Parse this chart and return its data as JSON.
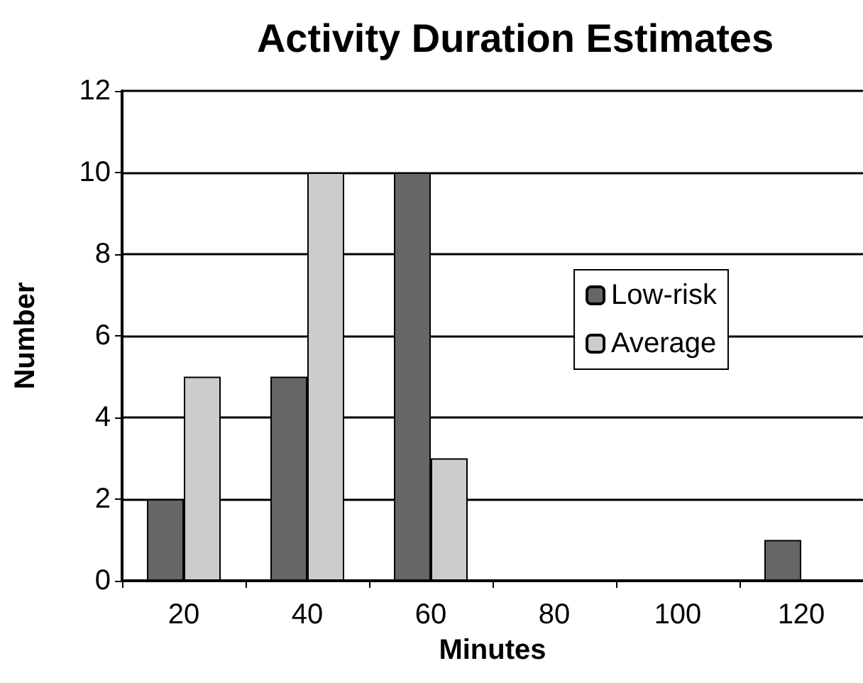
{
  "chart_data": {
    "type": "bar",
    "title": "Activity Duration Estimates",
    "xlabel": "Minutes",
    "ylabel": "Number",
    "categories": [
      "20",
      "40",
      "60",
      "80",
      "100",
      "120"
    ],
    "series": [
      {
        "name": "Low-risk",
        "color": "#666666",
        "values": [
          2,
          5,
          10,
          0,
          0,
          1
        ]
      },
      {
        "name": "Average",
        "color": "#cccccc",
        "values": [
          5,
          10,
          3,
          0,
          0,
          0
        ]
      }
    ],
    "ylim": [
      0,
      12
    ],
    "yticks": [
      0,
      2,
      4,
      6,
      8,
      10,
      12
    ],
    "grid": "y",
    "legend": "right"
  }
}
